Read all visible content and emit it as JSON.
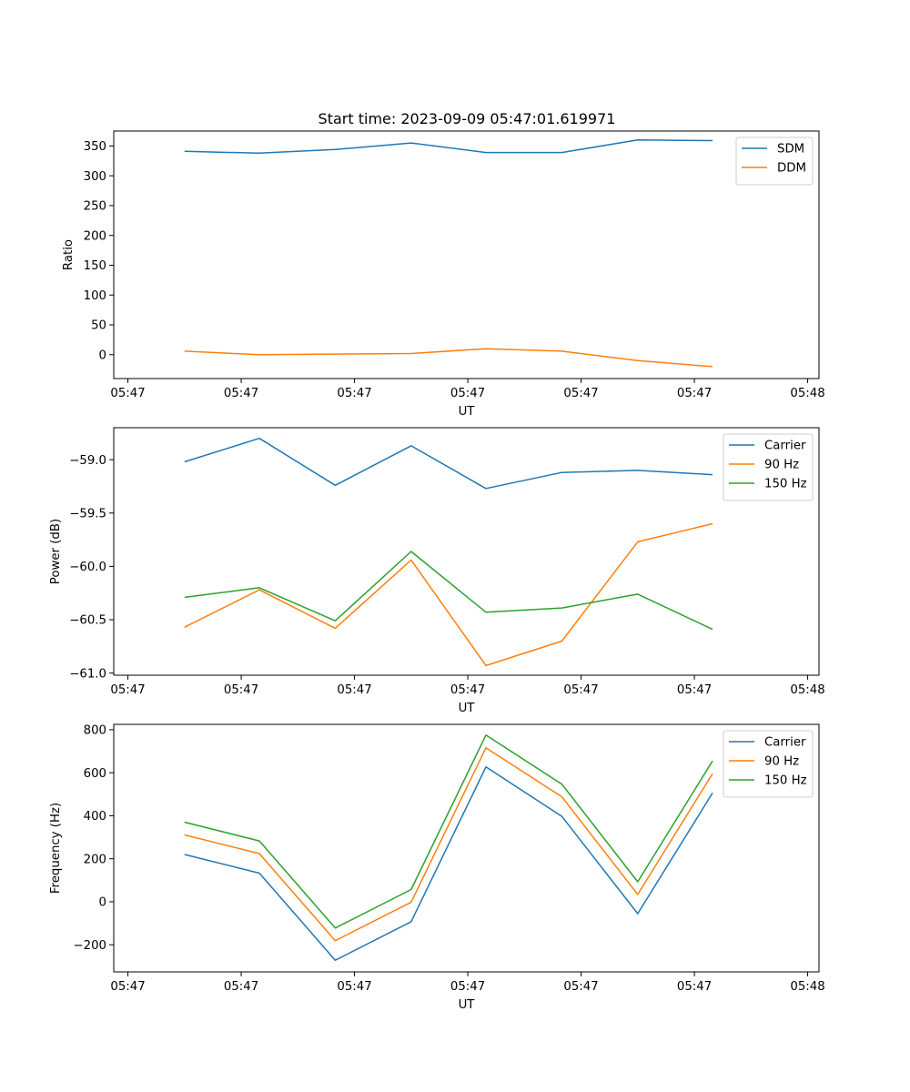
{
  "chart_data": [
    {
      "type": "line",
      "title": "Start time: 2023-09-09 05:47:01.619971",
      "xlabel": "UT",
      "ylabel": "Ratio",
      "xlim": [
        -0.125,
        6.1
      ],
      "ylim": [
        -40,
        375
      ],
      "x": [
        0.5,
        1.16,
        1.83,
        2.5,
        3.16,
        3.83,
        4.5,
        5.16
      ],
      "x_ticks": [
        0,
        1,
        2,
        3,
        4,
        5,
        6
      ],
      "x_tick_labels": [
        "05:47",
        "05:47",
        "05:47",
        "05:47",
        "05:47",
        "05:47",
        "05:48"
      ],
      "y_ticks": [
        0,
        50,
        100,
        150,
        200,
        250,
        300,
        350
      ],
      "y_tick_labels": [
        "0",
        "50",
        "100",
        "150",
        "200",
        "250",
        "300",
        "350"
      ],
      "legend_position": "top-right",
      "series": [
        {
          "name": "SDM",
          "color": "#1f77b4",
          "values": [
            341,
            338,
            344,
            355,
            339,
            339,
            360,
            359
          ]
        },
        {
          "name": "DDM",
          "color": "#ff7f0e",
          "values": [
            6,
            0,
            1,
            2,
            10,
            6,
            -10,
            -20
          ]
        }
      ]
    },
    {
      "type": "line",
      "title": "",
      "xlabel": "UT",
      "ylabel": "Power (dB)",
      "xlim": [
        -0.125,
        6.1
      ],
      "ylim": [
        -61.02,
        -58.7
      ],
      "x": [
        0.5,
        1.16,
        1.83,
        2.5,
        3.16,
        3.83,
        4.5,
        5.16
      ],
      "x_ticks": [
        0,
        1,
        2,
        3,
        4,
        5,
        6
      ],
      "x_tick_labels": [
        "05:47",
        "05:47",
        "05:47",
        "05:47",
        "05:47",
        "05:47",
        "05:48"
      ],
      "y_ticks": [
        -61.0,
        -60.5,
        -60.0,
        -59.5,
        -59.0
      ],
      "y_tick_labels": [
        "−61.0",
        "−60.5",
        "−60.0",
        "−59.5",
        "−59.0"
      ],
      "legend_position": "top-right",
      "series": [
        {
          "name": "Carrier",
          "color": "#1f77b4",
          "values": [
            -59.02,
            -58.8,
            -59.24,
            -58.87,
            -59.27,
            -59.12,
            -59.1,
            -59.14
          ]
        },
        {
          "name": "90 Hz",
          "color": "#ff7f0e",
          "values": [
            -60.57,
            -60.22,
            -60.58,
            -59.94,
            -60.93,
            -60.7,
            -59.77,
            -59.6
          ]
        },
        {
          "name": "150 Hz",
          "color": "#2ca02c",
          "values": [
            -60.29,
            -60.2,
            -60.51,
            -59.86,
            -60.43,
            -60.39,
            -60.26,
            -60.59
          ]
        }
      ]
    },
    {
      "type": "line",
      "title": "",
      "xlabel": "UT",
      "ylabel": "Frequency (Hz)",
      "xlim": [
        -0.125,
        6.1
      ],
      "ylim": [
        -326,
        825
      ],
      "x": [
        0.5,
        1.16,
        1.83,
        2.5,
        3.16,
        3.83,
        4.5,
        5.16
      ],
      "x_ticks": [
        0,
        1,
        2,
        3,
        4,
        5,
        6
      ],
      "x_tick_labels": [
        "05:47",
        "05:47",
        "05:47",
        "05:47",
        "05:47",
        "05:47",
        "05:48"
      ],
      "y_ticks": [
        -200,
        0,
        200,
        400,
        600,
        800
      ],
      "y_tick_labels": [
        "−200",
        "0",
        "200",
        "400",
        "600",
        "800"
      ],
      "legend_position": "top-right",
      "series": [
        {
          "name": "Carrier",
          "color": "#1f77b4",
          "values": [
            220,
            133,
            -272,
            -93,
            627,
            397,
            -55,
            506
          ]
        },
        {
          "name": "90 Hz",
          "color": "#ff7f0e",
          "values": [
            311,
            224,
            -181,
            -2,
            716,
            488,
            34,
            596
          ]
        },
        {
          "name": "150 Hz",
          "color": "#2ca02c",
          "values": [
            370,
            283,
            -122,
            57,
            775,
            547,
            93,
            655
          ]
        }
      ]
    }
  ]
}
